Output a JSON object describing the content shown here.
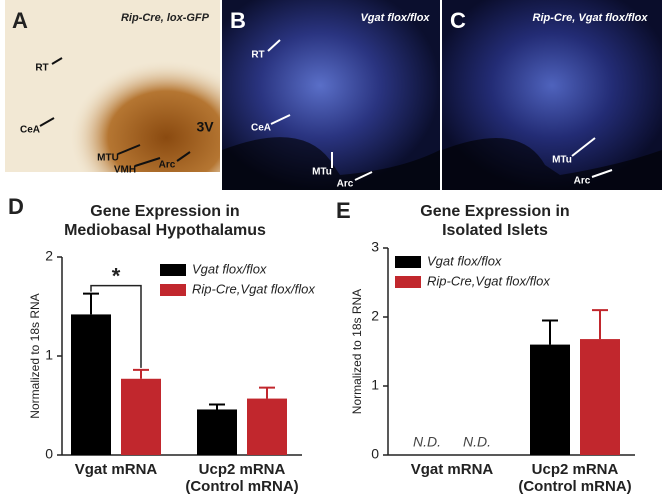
{
  "images": [
    {
      "letter": "A",
      "caption": "Rip-Cre, lox-GFP",
      "labels": [
        "RT",
        "CeA",
        "MTU",
        "VMH",
        "Arc",
        "3V"
      ]
    },
    {
      "letter": "B",
      "caption": "Vgat flox/flox",
      "labels": [
        "RT",
        "CeA",
        "MTu",
        "Arc"
      ]
    },
    {
      "letter": "C",
      "caption": "Rip-Cre, Vgat flox/flox",
      "labels": [
        "MTu",
        "Arc"
      ]
    }
  ],
  "chart_data": [
    {
      "type": "bar",
      "panel": "D",
      "title": [
        "Gene Expression in",
        "Mediobasal Hypothalamus"
      ],
      "ylabel": "Normalized to 18s RNA",
      "categories": [
        "Vgat mRNA",
        "Ucp2 mRNA (Control mRNA)"
      ],
      "series": [
        {
          "name": "Vgat flox/flox",
          "color": "#000000",
          "values": [
            1.42,
            0.46
          ],
          "errors": [
            0.21,
            0.05
          ]
        },
        {
          "name": "Rip-Cre,Vgat flox/flox",
          "color": "#c1272d",
          "values": [
            0.77,
            0.57
          ],
          "errors": [
            0.09,
            0.11
          ]
        }
      ],
      "annotation": "*",
      "ylim": [
        0,
        2
      ],
      "yticks": [
        0,
        1,
        2
      ]
    },
    {
      "type": "bar",
      "panel": "E",
      "title": [
        "Gene Expression in",
        "Isolated Islets"
      ],
      "ylabel": "Normalized to 18s RNA",
      "categories": [
        "Vgat mRNA",
        "Ucp2 mRNA (Control mRNA)"
      ],
      "series": [
        {
          "name": "Vgat flox/flox",
          "color": "#000000",
          "values": [
            null,
            1.6
          ],
          "value_labels": [
            "N.D.",
            null
          ],
          "errors": [
            null,
            0.35
          ]
        },
        {
          "name": "Rip-Cre,Vgat flox/flox",
          "color": "#c1272d",
          "values": [
            null,
            1.68
          ],
          "value_labels": [
            "N.D.",
            null
          ],
          "errors": [
            null,
            0.42
          ]
        }
      ],
      "ylim": [
        0,
        3
      ],
      "yticks": [
        0,
        1,
        2,
        3
      ]
    }
  ]
}
